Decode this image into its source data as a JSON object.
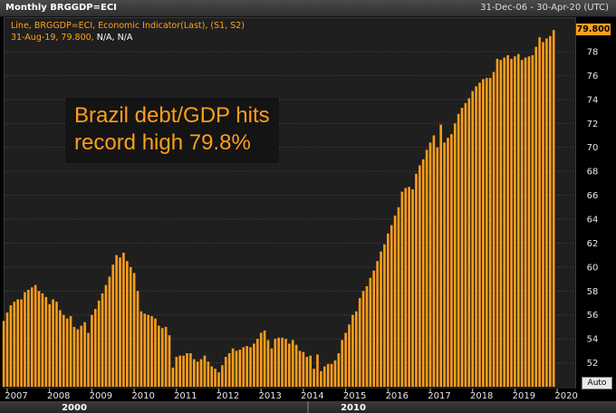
{
  "header": {
    "title": "Monthly BRGGDP=ECI",
    "date_range": "31-Dec-06 - 30-Apr-20 (UTC)"
  },
  "legend": {
    "line1": "Line, BRGGDP=ECI, Economic Indicator(Last), (S1, S2)",
    "line2_date": "31-Aug-19, 79.800,",
    "line2_na": "N/A, N/A"
  },
  "annotation": {
    "line1": "Brazil debt/GDP hits",
    "line2": "record high 79.8%"
  },
  "last_value_label": "79.800",
  "auto_label": "Auto",
  "colors": {
    "bar": "#ff9e1b",
    "plot_background": "#1f1f1f",
    "grid": "#4a4a4a",
    "tick_text": "#e6e6e6"
  },
  "chart_data": {
    "type": "bar",
    "start_month": "2006-12",
    "frequency": "monthly",
    "values": [
      55.5,
      56.2,
      56.8,
      57.1,
      57.3,
      57.3,
      57.9,
      58.1,
      58.3,
      58.5,
      58.0,
      57.8,
      57.5,
      56.9,
      57.3,
      57.1,
      56.4,
      56.0,
      55.7,
      55.9,
      55.0,
      54.8,
      55.1,
      55.4,
      54.5,
      56.0,
      56.5,
      57.2,
      57.8,
      58.5,
      59.2,
      60.2,
      61.0,
      60.8,
      61.2,
      60.5,
      60.0,
      59.5,
      58.0,
      56.3,
      56.1,
      56.0,
      55.9,
      55.7,
      55.1,
      54.9,
      55.0,
      54.3,
      51.6,
      52.5,
      52.6,
      52.6,
      52.8,
      52.8,
      52.3,
      52.1,
      52.3,
      52.6,
      52.1,
      51.7,
      51.5,
      51.2,
      51.8,
      52.5,
      52.8,
      53.2,
      53.0,
      53.1,
      53.3,
      53.4,
      53.3,
      53.6,
      54.0,
      54.5,
      54.7,
      53.9,
      53.2,
      54.0,
      54.1,
      54.1,
      54.0,
      53.6,
      53.9,
      53.5,
      53.0,
      52.9,
      52.5,
      52.6,
      51.5,
      52.7,
      51.3,
      51.7,
      51.9,
      51.9,
      52.2,
      52.8,
      53.9,
      54.5,
      55.2,
      56.0,
      56.3,
      57.4,
      58.0,
      58.4,
      59.1,
      59.7,
      60.5,
      61.3,
      61.9,
      62.8,
      63.5,
      64.3,
      65.0,
      66.3,
      66.6,
      66.7,
      66.5,
      67.8,
      68.5,
      69.0,
      69.8,
      70.4,
      71.0,
      70.0,
      71.9,
      70.4,
      70.8,
      71.1,
      72.0,
      72.8,
      73.3,
      73.7,
      74.1,
      74.7,
      75.1,
      75.4,
      75.7,
      75.8,
      75.8,
      76.3,
      77.4,
      77.3,
      77.5,
      77.7,
      77.4,
      77.6,
      77.8,
      77.3,
      77.5,
      77.6,
      77.7,
      78.4,
      79.2,
      78.8,
      79.1,
      79.3,
      79.8
    ],
    "x_ticks": [
      "2007",
      "2008",
      "2009",
      "2010",
      "2011",
      "2012",
      "2013",
      "2014",
      "2015",
      "2016",
      "2017",
      "2018",
      "2019",
      "2020"
    ],
    "decade_labels": [
      "2000",
      "2010"
    ],
    "y_ticks": [
      52,
      54,
      56,
      58,
      60,
      62,
      64,
      66,
      68,
      70,
      72,
      74,
      76,
      78
    ],
    "ylim": [
      50,
      80.8
    ],
    "grid": true,
    "last_value": 79.8
  }
}
